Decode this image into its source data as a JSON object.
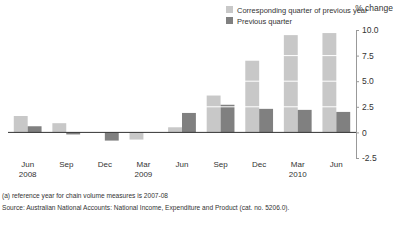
{
  "chart_data": {
    "type": "bar",
    "categories": [
      "Jun 2008",
      "Sep",
      "Dec",
      "Mar 2009",
      "Jun",
      "Sep",
      "Dec",
      "Mar 2010",
      "Jun"
    ],
    "series": [
      {
        "name": "Corresponding quarter of previous year",
        "color": "#c8c8c8",
        "values": [
          1.6,
          0.9,
          0.0,
          -0.7,
          0.5,
          3.6,
          7.0,
          9.5,
          9.7
        ]
      },
      {
        "name": "Previous quarter",
        "color": "#808080",
        "values": [
          0.6,
          -0.2,
          -0.8,
          0.0,
          1.9,
          2.7,
          2.3,
          2.2,
          2.0
        ]
      }
    ],
    "y_label": "% change",
    "ylim": [
      -2.5,
      10
    ],
    "yticks": [
      -2.5,
      0,
      2.5,
      {
        "value": 5,
        "label": "5.0"
      },
      {
        "value": 7.5,
        "label": "7.5"
      },
      {
        "value": 10,
        "label": "10.0"
      }
    ],
    "grid": true,
    "legend": "top right",
    "footnotes": [
      "(a) reference year for chain volume measures is 2007-08",
      "Source: Australian National Accounts: National Income, Expenditure and Product (cat. no. 5206.0)."
    ]
  }
}
